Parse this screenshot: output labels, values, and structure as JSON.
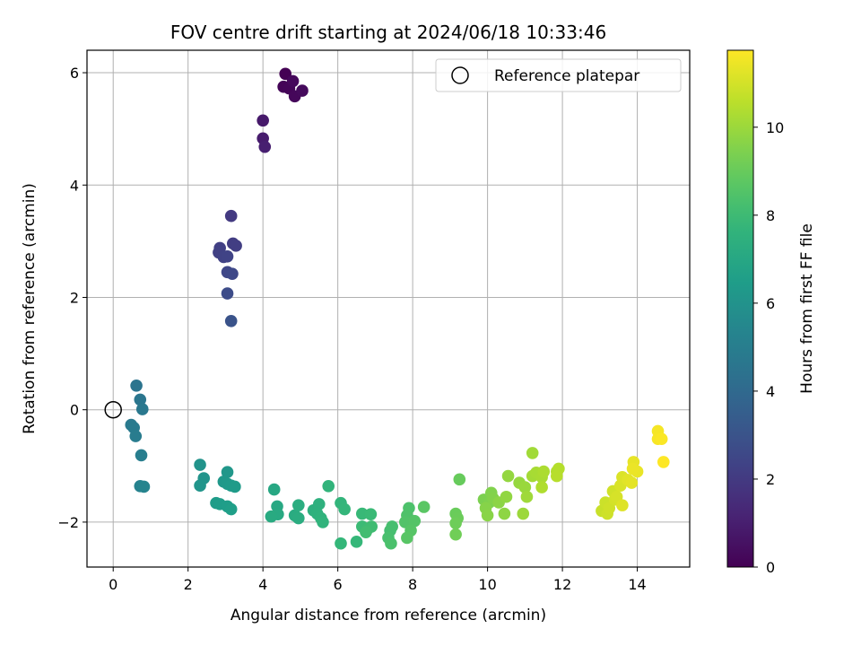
{
  "chart_data": {
    "type": "scatter",
    "title": "FOV centre drift starting at 2024/06/18 10:33:46",
    "xlabel": "Angular distance from reference (arcmin)",
    "ylabel": "Rotation from reference (arcmin)",
    "colorbar_label": "Hours from first FF file",
    "xlim": [
      -0.7,
      15.4
    ],
    "ylim": [
      -2.8,
      6.4
    ],
    "clim": [
      0,
      11.75
    ],
    "x_ticks": [
      0,
      2,
      4,
      6,
      8,
      10,
      12,
      14
    ],
    "y_ticks": [
      -2,
      0,
      2,
      4,
      6
    ],
    "colorbar_ticks": [
      0,
      2,
      4,
      6,
      8,
      10
    ],
    "grid": true,
    "colormap": "viridis",
    "legend": {
      "position": "upper right",
      "entries": [
        "Reference platepar"
      ]
    },
    "reference_point": {
      "x": 0,
      "y": 0,
      "label": "Reference platepar"
    },
    "series": [
      {
        "points": [
          {
            "x": 4.6,
            "y": 5.98,
            "t": 0.0
          },
          {
            "x": 4.55,
            "y": 5.75,
            "t": 0.1
          },
          {
            "x": 4.7,
            "y": 5.72,
            "t": 0.15
          },
          {
            "x": 4.85,
            "y": 5.58,
            "t": 0.2
          },
          {
            "x": 5.05,
            "y": 5.68,
            "t": 0.3
          },
          {
            "x": 4.8,
            "y": 5.85,
            "t": 0.25
          },
          {
            "x": 4.0,
            "y": 5.15,
            "t": 0.8
          },
          {
            "x": 4.0,
            "y": 4.83,
            "t": 0.9
          },
          {
            "x": 4.05,
            "y": 4.68,
            "t": 1.0
          },
          {
            "x": 3.15,
            "y": 3.45,
            "t": 2.0
          },
          {
            "x": 3.2,
            "y": 2.96,
            "t": 2.1
          },
          {
            "x": 3.28,
            "y": 2.92,
            "t": 2.15
          },
          {
            "x": 2.85,
            "y": 2.88,
            "t": 2.2
          },
          {
            "x": 2.82,
            "y": 2.8,
            "t": 2.25
          },
          {
            "x": 2.95,
            "y": 2.72,
            "t": 2.3
          },
          {
            "x": 3.05,
            "y": 2.73,
            "t": 2.35
          },
          {
            "x": 3.05,
            "y": 2.45,
            "t": 2.5
          },
          {
            "x": 3.18,
            "y": 2.42,
            "t": 2.55
          },
          {
            "x": 3.05,
            "y": 2.07,
            "t": 2.7
          },
          {
            "x": 3.15,
            "y": 1.58,
            "t": 3.0
          },
          {
            "x": 0.62,
            "y": 0.43,
            "t": 4.5
          },
          {
            "x": 0.72,
            "y": 0.18,
            "t": 4.6
          },
          {
            "x": 0.78,
            "y": 0.01,
            "t": 4.7
          },
          {
            "x": 0.48,
            "y": -0.27,
            "t": 4.8
          },
          {
            "x": 0.55,
            "y": -0.32,
            "t": 4.85
          },
          {
            "x": 0.6,
            "y": -0.47,
            "t": 4.9
          },
          {
            "x": 0.75,
            "y": -0.81,
            "t": 5.0
          },
          {
            "x": 0.72,
            "y": -1.36,
            "t": 5.2
          },
          {
            "x": 0.82,
            "y": -1.37,
            "t": 5.3
          },
          {
            "x": 2.32,
            "y": -0.98,
            "t": 6.0
          },
          {
            "x": 2.42,
            "y": -1.22,
            "t": 6.05
          },
          {
            "x": 2.32,
            "y": -1.35,
            "t": 6.1
          },
          {
            "x": 3.05,
            "y": -1.11,
            "t": 6.2
          },
          {
            "x": 2.95,
            "y": -1.28,
            "t": 6.25
          },
          {
            "x": 3.05,
            "y": -1.32,
            "t": 6.3
          },
          {
            "x": 3.15,
            "y": -1.35,
            "t": 6.35
          },
          {
            "x": 3.25,
            "y": -1.37,
            "t": 6.4
          },
          {
            "x": 2.75,
            "y": -1.66,
            "t": 6.45
          },
          {
            "x": 2.85,
            "y": -1.68,
            "t": 6.5
          },
          {
            "x": 3.05,
            "y": -1.72,
            "t": 6.55
          },
          {
            "x": 3.15,
            "y": -1.77,
            "t": 6.6
          },
          {
            "x": 4.3,
            "y": -1.42,
            "t": 7.0
          },
          {
            "x": 4.38,
            "y": -1.72,
            "t": 7.05
          },
          {
            "x": 4.4,
            "y": -1.86,
            "t": 7.1
          },
          {
            "x": 4.22,
            "y": -1.9,
            "t": 7.15
          },
          {
            "x": 4.85,
            "y": -1.88,
            "t": 7.2
          },
          {
            "x": 4.95,
            "y": -1.93,
            "t": 7.25
          },
          {
            "x": 4.95,
            "y": -1.7,
            "t": 7.3
          },
          {
            "x": 5.35,
            "y": -1.79,
            "t": 7.4
          },
          {
            "x": 5.5,
            "y": -1.68,
            "t": 7.45
          },
          {
            "x": 5.45,
            "y": -1.85,
            "t": 7.5
          },
          {
            "x": 5.55,
            "y": -1.93,
            "t": 7.55
          },
          {
            "x": 5.6,
            "y": -2.0,
            "t": 7.6
          },
          {
            "x": 5.75,
            "y": -1.36,
            "t": 7.65
          },
          {
            "x": 6.08,
            "y": -1.66,
            "t": 7.7
          },
          {
            "x": 6.18,
            "y": -1.77,
            "t": 7.75
          },
          {
            "x": 6.08,
            "y": -2.38,
            "t": 7.8
          },
          {
            "x": 6.5,
            "y": -2.35,
            "t": 7.85
          },
          {
            "x": 6.65,
            "y": -1.85,
            "t": 7.9
          },
          {
            "x": 6.88,
            "y": -1.86,
            "t": 7.95
          },
          {
            "x": 6.65,
            "y": -2.08,
            "t": 8.0
          },
          {
            "x": 6.8,
            "y": -2.12,
            "t": 8.05
          },
          {
            "x": 6.9,
            "y": -2.08,
            "t": 8.1
          },
          {
            "x": 6.75,
            "y": -2.18,
            "t": 8.15
          },
          {
            "x": 7.4,
            "y": -2.15,
            "t": 8.2
          },
          {
            "x": 7.45,
            "y": -2.08,
            "t": 8.25
          },
          {
            "x": 7.35,
            "y": -2.28,
            "t": 8.3
          },
          {
            "x": 7.42,
            "y": -2.38,
            "t": 8.35
          },
          {
            "x": 7.9,
            "y": -1.75,
            "t": 8.4
          },
          {
            "x": 7.85,
            "y": -1.88,
            "t": 8.45
          },
          {
            "x": 7.8,
            "y": -2.0,
            "t": 8.5
          },
          {
            "x": 8.05,
            "y": -1.98,
            "t": 8.55
          },
          {
            "x": 7.95,
            "y": -2.15,
            "t": 8.6
          },
          {
            "x": 7.85,
            "y": -2.28,
            "t": 8.65
          },
          {
            "x": 8.3,
            "y": -1.73,
            "t": 8.7
          },
          {
            "x": 9.25,
            "y": -1.24,
            "t": 9.0
          },
          {
            "x": 9.15,
            "y": -1.85,
            "t": 9.05
          },
          {
            "x": 9.2,
            "y": -1.93,
            "t": 9.1
          },
          {
            "x": 9.15,
            "y": -2.02,
            "t": 9.15
          },
          {
            "x": 9.15,
            "y": -2.22,
            "t": 9.2
          },
          {
            "x": 9.9,
            "y": -1.6,
            "t": 9.4
          },
          {
            "x": 10.05,
            "y": -1.65,
            "t": 9.45
          },
          {
            "x": 10.1,
            "y": -1.48,
            "t": 9.5
          },
          {
            "x": 10.15,
            "y": -1.58,
            "t": 9.55
          },
          {
            "x": 9.95,
            "y": -1.75,
            "t": 9.6
          },
          {
            "x": 10.0,
            "y": -1.88,
            "t": 9.65
          },
          {
            "x": 10.3,
            "y": -1.65,
            "t": 9.7
          },
          {
            "x": 10.45,
            "y": -1.85,
            "t": 9.75
          },
          {
            "x": 10.5,
            "y": -1.55,
            "t": 9.8
          },
          {
            "x": 10.55,
            "y": -1.18,
            "t": 9.85
          },
          {
            "x": 10.85,
            "y": -1.3,
            "t": 9.9
          },
          {
            "x": 11.0,
            "y": -1.38,
            "t": 9.95
          },
          {
            "x": 10.95,
            "y": -1.85,
            "t": 10.0
          },
          {
            "x": 11.05,
            "y": -1.55,
            "t": 10.05
          },
          {
            "x": 11.2,
            "y": -0.77,
            "t": 10.1
          },
          {
            "x": 11.2,
            "y": -1.18,
            "t": 10.15
          },
          {
            "x": 11.3,
            "y": -1.12,
            "t": 10.2
          },
          {
            "x": 11.45,
            "y": -1.2,
            "t": 10.25
          },
          {
            "x": 11.5,
            "y": -1.1,
            "t": 10.3
          },
          {
            "x": 11.45,
            "y": -1.38,
            "t": 10.35
          },
          {
            "x": 11.85,
            "y": -1.1,
            "t": 10.4
          },
          {
            "x": 11.9,
            "y": -1.05,
            "t": 10.45
          },
          {
            "x": 11.85,
            "y": -1.18,
            "t": 10.5
          },
          {
            "x": 13.05,
            "y": -1.8,
            "t": 10.8
          },
          {
            "x": 13.15,
            "y": -1.65,
            "t": 10.85
          },
          {
            "x": 13.2,
            "y": -1.85,
            "t": 10.9
          },
          {
            "x": 13.25,
            "y": -1.75,
            "t": 10.92
          },
          {
            "x": 13.35,
            "y": -1.45,
            "t": 10.95
          },
          {
            "x": 13.4,
            "y": -1.6,
            "t": 11.0
          },
          {
            "x": 13.45,
            "y": -1.55,
            "t": 11.05
          },
          {
            "x": 13.55,
            "y": -1.35,
            "t": 11.1
          },
          {
            "x": 13.6,
            "y": -1.2,
            "t": 11.15
          },
          {
            "x": 13.6,
            "y": -1.7,
            "t": 11.2
          },
          {
            "x": 13.75,
            "y": -1.25,
            "t": 11.25
          },
          {
            "x": 13.85,
            "y": -1.3,
            "t": 11.3
          },
          {
            "x": 13.9,
            "y": -0.93,
            "t": 11.35
          },
          {
            "x": 14.0,
            "y": -1.1,
            "t": 11.4
          },
          {
            "x": 13.88,
            "y": -1.05,
            "t": 11.42
          },
          {
            "x": 14.55,
            "y": -0.38,
            "t": 11.6
          },
          {
            "x": 14.55,
            "y": -0.52,
            "t": 11.65
          },
          {
            "x": 14.65,
            "y": -0.52,
            "t": 11.7
          },
          {
            "x": 14.7,
            "y": -0.93,
            "t": 11.75
          }
        ]
      }
    ]
  }
}
